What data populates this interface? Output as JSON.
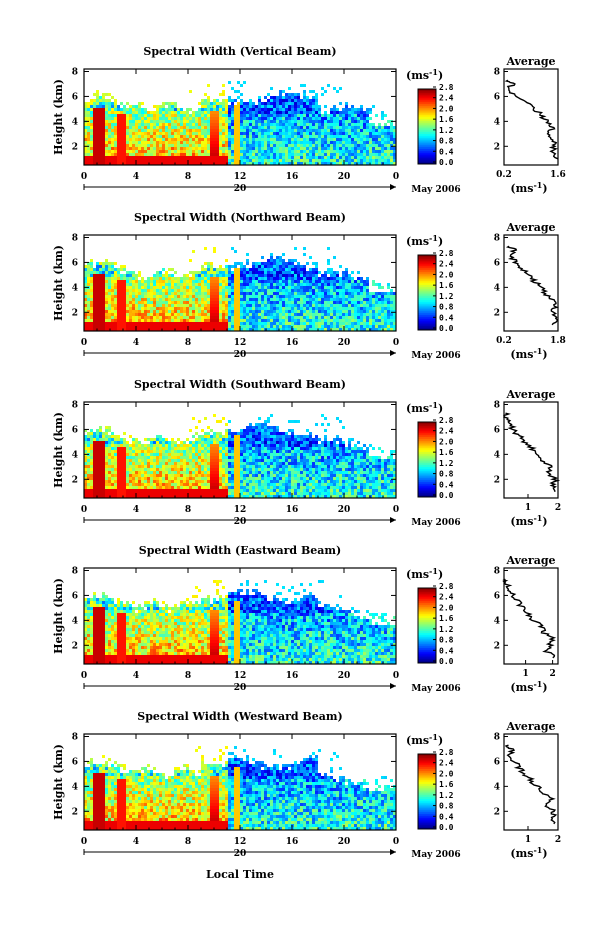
{
  "global": {
    "ylabel": "Height (km)",
    "xlabel": "Local Time",
    "date_label": "May 2006",
    "day_label": "20",
    "x_ticks": [
      "0",
      "4",
      "8",
      "12",
      "16",
      "20",
      "0"
    ],
    "y_ticks": [
      "2",
      "4",
      "6",
      "8"
    ],
    "colorbar_unit": "(ms",
    "colorbar_ticks": [
      "2.8",
      "2.4",
      "2.0",
      "1.6",
      "1.2",
      "0.8",
      "0.4",
      "0.0"
    ],
    "avg_title": "Average",
    "avg_unit": "(ms",
    "colors": {
      "scale": [
        "#00007f",
        "#0000ff",
        "#007fff",
        "#00ffff",
        "#7fff7f",
        "#ffff00",
        "#ff7f00",
        "#ff0000",
        "#7f0000"
      ]
    }
  },
  "chart_data": [
    {
      "type": "heatmap",
      "title": "Spectral Width (Vertical Beam)",
      "ylabel": "Height (km)",
      "xlim": [
        0,
        24
      ],
      "ylim": [
        0.5,
        8.2
      ],
      "clim": [
        0.0,
        2.8
      ],
      "avg_x_ticks": [
        "0.2",
        "1.6"
      ],
      "avg_xlim": [
        0.2,
        1.6
      ],
      "avg_profile": [
        [
          1.55,
          1.0
        ],
        [
          1.5,
          1.5
        ],
        [
          1.45,
          2.0
        ],
        [
          1.5,
          2.5
        ],
        [
          1.35,
          3.0
        ],
        [
          1.45,
          3.5
        ],
        [
          1.3,
          4.0
        ],
        [
          1.15,
          4.5
        ],
        [
          1.0,
          5.0
        ],
        [
          0.8,
          5.5
        ],
        [
          0.5,
          6.0
        ],
        [
          0.35,
          6.5
        ],
        [
          0.4,
          7.0
        ],
        [
          0.3,
          7.3
        ]
      ]
    },
    {
      "type": "heatmap",
      "title": "Spectral Width (Northward Beam)",
      "ylabel": "Height (km)",
      "xlim": [
        0,
        24
      ],
      "ylim": [
        0.5,
        8.2
      ],
      "clim": [
        0.0,
        2.8
      ],
      "avg_x_ticks": [
        "0.2",
        "1.8"
      ],
      "avg_xlim": [
        0.2,
        1.8
      ],
      "avg_profile": [
        [
          1.7,
          1.0
        ],
        [
          1.75,
          1.5
        ],
        [
          1.65,
          2.0
        ],
        [
          1.75,
          2.5
        ],
        [
          1.6,
          3.0
        ],
        [
          1.4,
          3.5
        ],
        [
          1.3,
          4.0
        ],
        [
          1.1,
          4.5
        ],
        [
          0.95,
          5.0
        ],
        [
          0.75,
          5.5
        ],
        [
          0.55,
          6.0
        ],
        [
          0.4,
          6.5
        ],
        [
          0.5,
          7.0
        ],
        [
          0.35,
          7.3
        ]
      ]
    },
    {
      "type": "heatmap",
      "title": "Spectral Width (Southward Beam)",
      "ylabel": "Height (km)",
      "xlim": [
        0,
        24
      ],
      "ylim": [
        0.5,
        8.2
      ],
      "clim": [
        0.0,
        2.8
      ],
      "avg_x_ticks": [
        "1",
        "2"
      ],
      "avg_xlim": [
        0.2,
        2.0
      ],
      "avg_profile": [
        [
          1.9,
          1.0
        ],
        [
          1.85,
          1.5
        ],
        [
          1.9,
          2.0
        ],
        [
          1.6,
          2.5
        ],
        [
          1.8,
          3.0
        ],
        [
          1.5,
          3.5
        ],
        [
          1.3,
          4.0
        ],
        [
          1.1,
          4.5
        ],
        [
          0.9,
          5.0
        ],
        [
          0.7,
          5.5
        ],
        [
          0.5,
          6.0
        ],
        [
          0.35,
          6.5
        ],
        [
          0.3,
          7.0
        ],
        [
          0.25,
          7.3
        ]
      ]
    },
    {
      "type": "heatmap",
      "title": "Spectral Width (Eastward Beam)",
      "ylabel": "Height (km)",
      "xlim": [
        0,
        24
      ],
      "ylim": [
        0.5,
        8.2
      ],
      "clim": [
        0.0,
        2.8
      ],
      "avg_x_ticks": [
        "1",
        "2"
      ],
      "avg_xlim": [
        0.2,
        2.2
      ],
      "avg_profile": [
        [
          2.1,
          1.0
        ],
        [
          1.8,
          1.5
        ],
        [
          1.9,
          2.0
        ],
        [
          2.0,
          2.5
        ],
        [
          1.7,
          3.0
        ],
        [
          1.6,
          3.5
        ],
        [
          1.3,
          4.0
        ],
        [
          1.1,
          4.5
        ],
        [
          0.9,
          5.0
        ],
        [
          0.7,
          5.5
        ],
        [
          0.55,
          6.0
        ],
        [
          0.4,
          6.5
        ],
        [
          0.3,
          7.0
        ],
        [
          0.25,
          7.3
        ]
      ]
    },
    {
      "type": "heatmap",
      "title": "Spectral Width (Westward Beam)",
      "ylabel": "Height (km)",
      "xlim": [
        0,
        24
      ],
      "ylim": [
        0.5,
        8.2
      ],
      "clim": [
        0.0,
        2.8
      ],
      "avg_x_ticks": [
        "1",
        "2"
      ],
      "avg_xlim": [
        0.2,
        2.0
      ],
      "avg_profile": [
        [
          1.9,
          1.0
        ],
        [
          1.8,
          1.5
        ],
        [
          1.85,
          2.0
        ],
        [
          1.6,
          2.5
        ],
        [
          1.75,
          3.0
        ],
        [
          1.5,
          3.5
        ],
        [
          1.3,
          4.0
        ],
        [
          1.1,
          4.5
        ],
        [
          0.9,
          5.0
        ],
        [
          0.7,
          5.5
        ],
        [
          0.55,
          6.0
        ],
        [
          0.4,
          6.5
        ],
        [
          0.45,
          7.0
        ],
        [
          0.35,
          7.3
        ]
      ]
    }
  ]
}
